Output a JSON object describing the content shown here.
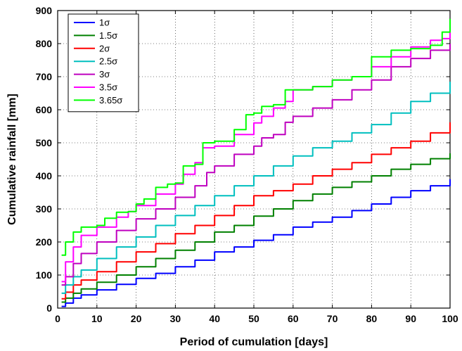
{
  "chart_data": {
    "type": "line",
    "title": "",
    "xlabel": "Period of cumulation [days]",
    "ylabel": "Cumulative rainfall [mm]",
    "xlim": [
      0,
      100
    ],
    "ylim": [
      0,
      900
    ],
    "xticks": [
      0,
      10,
      20,
      30,
      40,
      50,
      60,
      70,
      80,
      90,
      100
    ],
    "yticks": [
      0,
      100,
      200,
      300,
      400,
      500,
      600,
      700,
      800,
      900
    ],
    "grid": true,
    "legend_position": "top-left",
    "series": [
      {
        "name": "1σ",
        "color": "#0000ff",
        "x": [
          1,
          2,
          4,
          6,
          10,
          15,
          20,
          25,
          30,
          35,
          40,
          45,
          50,
          55,
          60,
          65,
          70,
          75,
          80,
          85,
          90,
          95,
          100
        ],
        "y": [
          5,
          15,
          30,
          40,
          55,
          72,
          90,
          105,
          125,
          145,
          170,
          185,
          205,
          222,
          245,
          260,
          275,
          295,
          315,
          335,
          355,
          370,
          390
        ]
      },
      {
        "name": "1.5σ",
        "color": "#008000",
        "x": [
          1,
          2,
          4,
          6,
          10,
          15,
          20,
          25,
          30,
          35,
          40,
          45,
          50,
          55,
          60,
          65,
          70,
          75,
          80,
          85,
          90,
          95,
          100
        ],
        "y": [
          18,
          30,
          45,
          58,
          78,
          100,
          125,
          150,
          175,
          200,
          230,
          250,
          278,
          300,
          325,
          345,
          365,
          382,
          400,
          420,
          435,
          452,
          468
        ]
      },
      {
        "name": "2σ",
        "color": "#ff0000",
        "x": [
          1,
          2,
          4,
          6,
          10,
          15,
          20,
          25,
          30,
          35,
          40,
          45,
          50,
          55,
          60,
          65,
          70,
          75,
          80,
          85,
          90,
          95,
          100
        ],
        "y": [
          28,
          48,
          70,
          85,
          110,
          140,
          170,
          195,
          225,
          250,
          280,
          310,
          340,
          355,
          375,
          400,
          420,
          440,
          465,
          485,
          505,
          530,
          562
        ]
      },
      {
        "name": "2.5σ",
        "color": "#00bfbf",
        "x": [
          1,
          2,
          4,
          6,
          10,
          15,
          20,
          25,
          30,
          35,
          40,
          45,
          50,
          55,
          60,
          65,
          70,
          75,
          80,
          85,
          90,
          95,
          100
        ],
        "y": [
          45,
          70,
          95,
          115,
          150,
          185,
          215,
          250,
          280,
          310,
          340,
          370,
          400,
          430,
          460,
          485,
          505,
          530,
          555,
          590,
          625,
          650,
          685
        ]
      },
      {
        "name": "3σ",
        "color": "#bf00bf",
        "x": [
          1,
          2,
          4,
          6,
          10,
          15,
          20,
          25,
          30,
          35,
          38,
          40,
          45,
          50,
          52,
          55,
          58,
          60,
          65,
          70,
          75,
          80,
          85,
          90,
          95,
          100
        ],
        "y": [
          70,
          95,
          135,
          165,
          200,
          235,
          270,
          300,
          335,
          370,
          410,
          430,
          465,
          490,
          515,
          525,
          562,
          580,
          605,
          630,
          660,
          690,
          730,
          755,
          780,
          800
        ]
      },
      {
        "name": "3.5σ",
        "color": "#ff00ff",
        "x": [
          1,
          2,
          4,
          6,
          10,
          15,
          18,
          20,
          25,
          30,
          32,
          35,
          37,
          40,
          45,
          50,
          52,
          55,
          58,
          60,
          65,
          70,
          75,
          80,
          85,
          90,
          95,
          98,
          100
        ],
        "y": [
          80,
          140,
          185,
          220,
          245,
          275,
          292,
          310,
          345,
          375,
          405,
          440,
          485,
          490,
          525,
          560,
          580,
          605,
          625,
          660,
          670,
          690,
          700,
          730,
          760,
          790,
          810,
          815,
          852
        ]
      },
      {
        "name": "3.65σ",
        "color": "#00ff00",
        "x": [
          1,
          2,
          4,
          6,
          10,
          12,
          15,
          18,
          20,
          22,
          25,
          28,
          30,
          32,
          35,
          37,
          40,
          45,
          48,
          50,
          52,
          55,
          58,
          60,
          65,
          70,
          75,
          80,
          85,
          90,
          95,
          98,
          100
        ],
        "y": [
          160,
          200,
          230,
          245,
          250,
          272,
          290,
          292,
          315,
          330,
          365,
          375,
          378,
          430,
          435,
          500,
          505,
          540,
          585,
          590,
          610,
          615,
          660,
          660,
          670,
          690,
          700,
          760,
          780,
          785,
          795,
          835,
          875
        ]
      }
    ]
  }
}
